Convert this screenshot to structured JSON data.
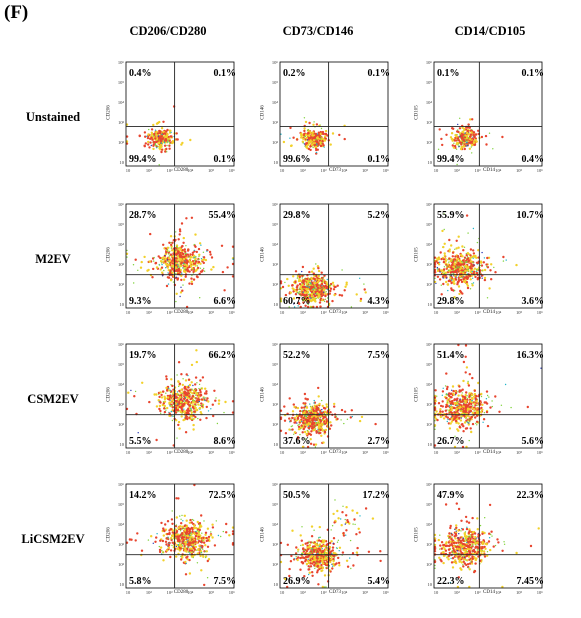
{
  "panel_label": "(F)",
  "colors": {
    "low_density": "#2a3bb5",
    "mid_density": "#1fb5c9",
    "high_density": "#7fd23a",
    "peak_density": "#f2d12b",
    "core_density": "#e8452f",
    "axis": "#000000",
    "gate": "#222222"
  },
  "chart_data": {
    "type": "scatter",
    "subtype": "flow-cytometry quadrant dot plots",
    "columns": [
      "CD206/CD280",
      "CD73/CD146",
      "CD14/CD105"
    ],
    "rows": [
      "Unstained",
      "M2EV",
      "CSM2EV",
      "LiCSM2EV"
    ],
    "axis_scale": "log",
    "axis_range": [
      10,
      1000000
    ],
    "tick_labels": [
      "10",
      "10²",
      "10³",
      "10⁴",
      "10⁵",
      "10⁶"
    ],
    "axes": {
      "CD206/CD280": {
        "xlabel": "CD280",
        "ylabel": "CD206"
      },
      "CD73/CD146": {
        "xlabel": "CD73",
        "ylabel": "CD146"
      },
      "CD14/CD105": {
        "xlabel": "CD14",
        "ylabel": "CD105"
      }
    },
    "plots": [
      {
        "row": "Unstained",
        "column": "CD206/CD280",
        "quadrants": {
          "top_left": "0.4%",
          "top_right": "0.1%",
          "bottom_left": "99.4%",
          "bottom_right": "0.1%"
        }
      },
      {
        "row": "Unstained",
        "column": "CD73/CD146",
        "quadrants": {
          "top_left": "0.2%",
          "top_right": "0.1%",
          "bottom_left": "99.6%",
          "bottom_right": "0.1%"
        }
      },
      {
        "row": "Unstained",
        "column": "CD14/CD105",
        "quadrants": {
          "top_left": "0.1%",
          "top_right": "0.1%",
          "bottom_left": "99.4%",
          "bottom_right": "0.4%"
        }
      },
      {
        "row": "M2EV",
        "column": "CD206/CD280",
        "quadrants": {
          "top_left": "28.7%",
          "top_right": "55.4%",
          "bottom_left": "9.3%",
          "bottom_right": "6.6%"
        }
      },
      {
        "row": "M2EV",
        "column": "CD73/CD146",
        "quadrants": {
          "top_left": "29.8%",
          "top_right": "5.2%",
          "bottom_left": "60.7%",
          "bottom_right": "4.3%"
        }
      },
      {
        "row": "M2EV",
        "column": "CD14/CD105",
        "quadrants": {
          "top_left": "55.9%",
          "top_right": "10.7%",
          "bottom_left": "29.8%",
          "bottom_right": "3.6%"
        }
      },
      {
        "row": "CSM2EV",
        "column": "CD206/CD280",
        "quadrants": {
          "top_left": "19.7%",
          "top_right": "66.2%",
          "bottom_left": "5.5%",
          "bottom_right": "8.6%"
        }
      },
      {
        "row": "CSM2EV",
        "column": "CD73/CD146",
        "quadrants": {
          "top_left": "52.2%",
          "top_right": "7.5%",
          "bottom_left": "37.6%",
          "bottom_right": "2.7%"
        }
      },
      {
        "row": "CSM2EV",
        "column": "CD14/CD105",
        "quadrants": {
          "top_left": "51.4%",
          "top_right": "16.3%",
          "bottom_left": "26.7%",
          "bottom_right": "5.6%"
        }
      },
      {
        "row": "LiCSM2EV",
        "column": "CD206/CD280",
        "quadrants": {
          "top_left": "14.2%",
          "top_right": "72.5%",
          "bottom_left": "5.8%",
          "bottom_right": "7.5%"
        }
      },
      {
        "row": "LiCSM2EV",
        "column": "CD73/CD146",
        "quadrants": {
          "top_left": "50.5%",
          "top_right": "17.2%",
          "bottom_left": "26.9%",
          "bottom_right": "5.4%"
        }
      },
      {
        "row": "LiCSM2EV",
        "column": "CD14/CD105",
        "quadrants": {
          "top_left": "47.9%",
          "top_right": "22.3%",
          "bottom_left": "22.3%",
          "bottom_right": "7.45%"
        }
      }
    ]
  }
}
